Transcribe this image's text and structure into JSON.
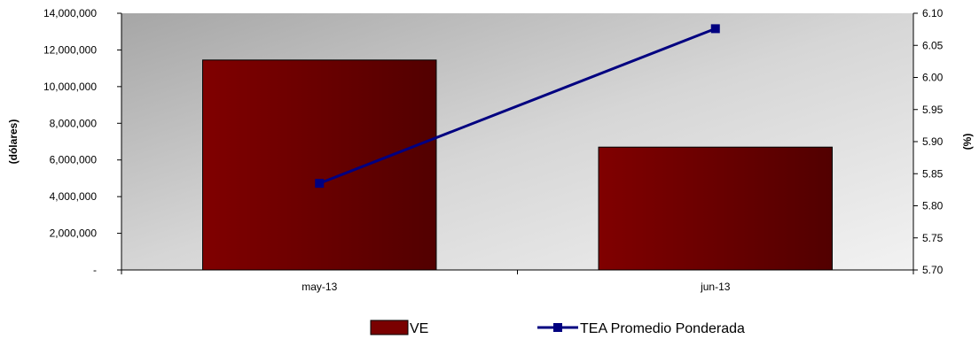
{
  "chart_data": {
    "type": "bar",
    "categories": [
      "may-13",
      "jun-13"
    ],
    "series": [
      {
        "name": "VE",
        "type": "bar",
        "axis": "left",
        "values": [
          11450000,
          6700000
        ],
        "color": "#7a0000"
      },
      {
        "name": "TEA Promedio Ponderada",
        "type": "line",
        "axis": "right",
        "values": [
          5.835,
          6.076
        ],
        "color": "#000080",
        "marker": "square"
      }
    ],
    "ylabel": "(dólares)",
    "y2label": "(%)",
    "ylim": [
      0,
      14000000
    ],
    "y2lim": [
      5.7,
      6.1
    ],
    "yticks": [
      {
        "value": 0,
        "label": "-"
      },
      {
        "value": 2000000,
        "label": "2,000,000"
      },
      {
        "value": 4000000,
        "label": "4,000,000"
      },
      {
        "value": 6000000,
        "label": "6,000,000"
      },
      {
        "value": 8000000,
        "label": "8,000,000"
      },
      {
        "value": 10000000,
        "label": "10,000,000"
      },
      {
        "value": 12000000,
        "label": "12,000,000"
      },
      {
        "value": 14000000,
        "label": "14,000,000"
      }
    ],
    "y2ticks": [
      {
        "value": 5.7,
        "label": "5.70"
      },
      {
        "value": 5.75,
        "label": "5.75"
      },
      {
        "value": 5.8,
        "label": "5.80"
      },
      {
        "value": 5.85,
        "label": "5.85"
      },
      {
        "value": 5.9,
        "label": "5.90"
      },
      {
        "value": 5.95,
        "label": "5.95"
      },
      {
        "value": 6.0,
        "label": "6.00"
      },
      {
        "value": 6.05,
        "label": "6.05"
      },
      {
        "value": 6.1,
        "label": "6.10"
      }
    ],
    "grid": false,
    "legend": "bottom"
  }
}
